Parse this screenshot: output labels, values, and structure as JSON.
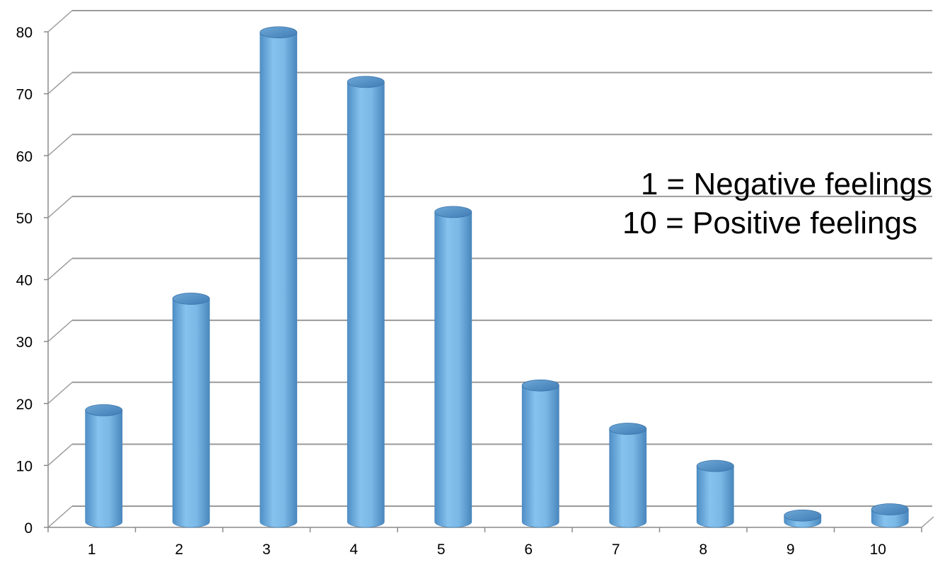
{
  "chart_data": {
    "type": "bar",
    "style": "3d-cylinder",
    "categories": [
      "1",
      "2",
      "3",
      "4",
      "5",
      "6",
      "7",
      "8",
      "9",
      "10"
    ],
    "values": [
      18,
      36,
      79,
      71,
      50,
      22,
      15,
      9,
      1,
      2
    ],
    "ylim": [
      0,
      80
    ],
    "yticks": [
      0,
      10,
      20,
      30,
      40,
      50,
      60,
      70,
      80
    ],
    "grid": true,
    "bar_color": "#7ab8e6",
    "annotations": [
      "1 = Negative feelings",
      "10 = Positive feelings"
    ]
  }
}
